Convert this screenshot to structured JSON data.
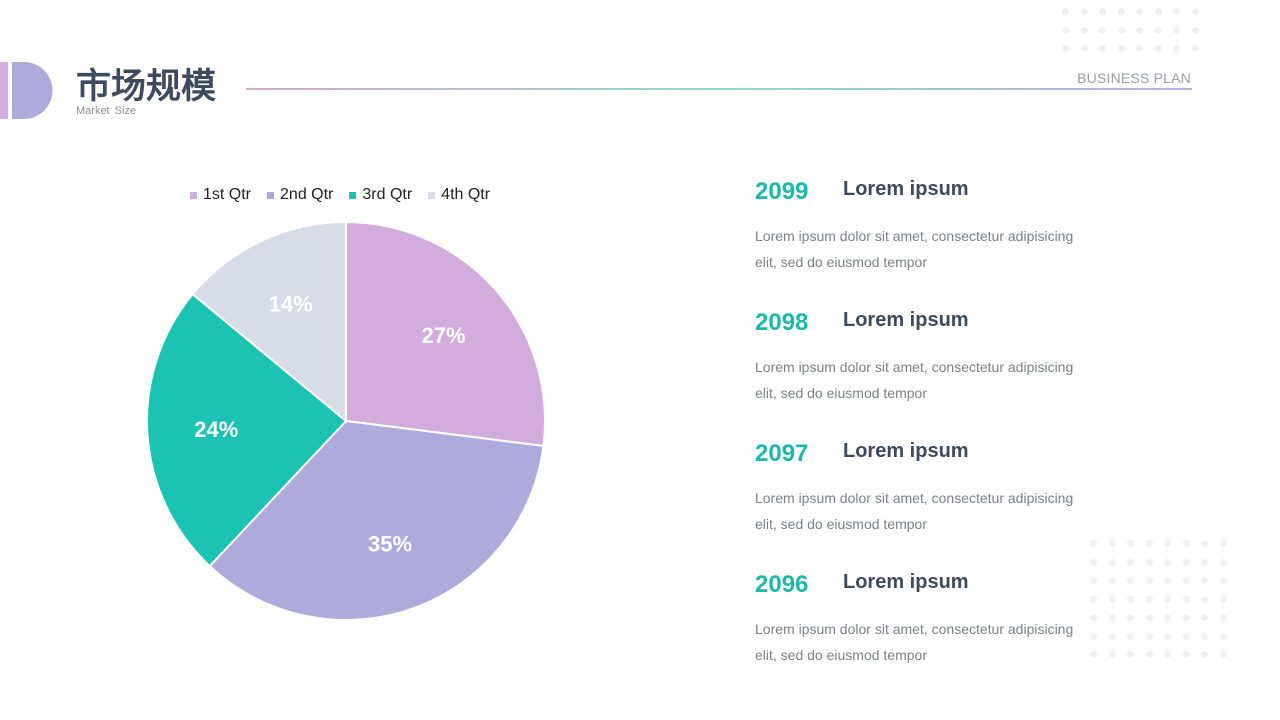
{
  "header": {
    "title": "市场规模",
    "subtitle": "Market  Size",
    "brand": "BUSINESS PLAN"
  },
  "colors": {
    "q1": "#d2acdd",
    "q2": "#aeaadc",
    "q3": "#1cc2b2",
    "q4": "#d7dce6",
    "year": "#1cb8a8",
    "heading": "#3e4a5d"
  },
  "chart_data": {
    "type": "pie",
    "categories": [
      "1st Qtr",
      "2nd Qtr",
      "3rd Qtr",
      "4th Qtr"
    ],
    "values": [
      27,
      35,
      24,
      14
    ],
    "labels": [
      "27%",
      "35%",
      "24%",
      "14%"
    ],
    "legend": "top"
  },
  "items": [
    {
      "year": "2099",
      "heading": "Lorem ipsum",
      "text": "Lorem ipsum dolor sit amet, consectetur adipisicing elit, sed do eiusmod tempor"
    },
    {
      "year": "2098",
      "heading": "Lorem ipsum",
      "text": "Lorem ipsum dolor sit amet, consectetur adipisicing elit, sed do eiusmod tempor"
    },
    {
      "year": "2097",
      "heading": "Lorem ipsum",
      "text": "Lorem ipsum dolor sit amet, consectetur adipisicing elit, sed do eiusmod tempor"
    },
    {
      "year": "2096",
      "heading": "Lorem ipsum",
      "text": "Lorem ipsum dolor sit amet, consectetur adipisicing elit, sed do eiusmod tempor"
    }
  ]
}
